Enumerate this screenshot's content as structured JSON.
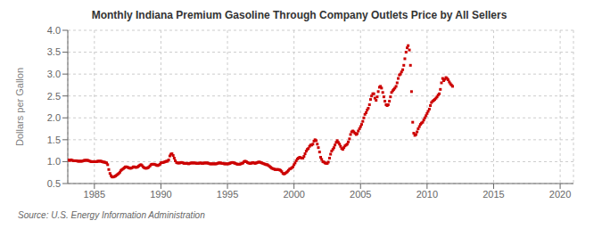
{
  "chart_data": {
    "type": "scatter",
    "title": "Monthly Indiana Premium Gasoline Through Company Outlets Price by All Sellers",
    "ylabel": "Dollars per Gallon",
    "annotations": [
      "Source: U.S. Energy Information Administration"
    ],
    "color": "#cc0000",
    "marker": "square",
    "grid": true,
    "xlim": [
      1983,
      2021
    ],
    "ylim": [
      0.5,
      4.0
    ],
    "xticks": [
      1985,
      1990,
      1995,
      2000,
      2005,
      2010,
      2015,
      2020
    ],
    "yticks": [
      0.5,
      {
        "value": 1.0,
        "label": "1.0"
      },
      1.5,
      {
        "value": 2.0,
        "label": "2.0"
      },
      2.5,
      {
        "value": 3.0,
        "label": "3.0"
      },
      3.5,
      {
        "value": 4.0,
        "label": "4.0"
      }
    ],
    "x": [
      1983.0,
      1983.08,
      1983.17,
      1983.25,
      1983.33,
      1983.42,
      1983.5,
      1983.58,
      1983.67,
      1983.75,
      1983.83,
      1983.92,
      1984.0,
      1984.08,
      1984.17,
      1984.25,
      1984.33,
      1984.42,
      1984.5,
      1984.58,
      1984.67,
      1984.75,
      1984.83,
      1984.92,
      1985.0,
      1985.08,
      1985.17,
      1985.25,
      1985.33,
      1985.42,
      1985.5,
      1985.58,
      1985.67,
      1985.75,
      1985.83,
      1985.92,
      1986.0,
      1986.08,
      1986.17,
      1986.25,
      1986.33,
      1986.42,
      1986.5,
      1986.58,
      1986.67,
      1986.75,
      1986.83,
      1986.92,
      1987.0,
      1987.08,
      1987.17,
      1987.25,
      1987.33,
      1987.42,
      1987.5,
      1987.58,
      1987.67,
      1987.75,
      1987.83,
      1987.92,
      1988.0,
      1988.08,
      1988.17,
      1988.25,
      1988.33,
      1988.42,
      1988.5,
      1988.58,
      1988.67,
      1988.75,
      1988.83,
      1988.92,
      1989.0,
      1989.08,
      1989.17,
      1989.25,
      1989.33,
      1989.42,
      1989.5,
      1989.58,
      1989.67,
      1989.75,
      1989.83,
      1989.92,
      1990.0,
      1990.08,
      1990.17,
      1990.25,
      1990.33,
      1990.42,
      1990.5,
      1990.58,
      1990.67,
      1990.75,
      1990.83,
      1990.92,
      1991.0,
      1991.08,
      1991.17,
      1991.25,
      1991.33,
      1991.42,
      1991.5,
      1991.58,
      1991.67,
      1991.75,
      1991.83,
      1991.92,
      1992.0,
      1992.08,
      1992.17,
      1992.25,
      1992.33,
      1992.42,
      1992.5,
      1992.58,
      1992.67,
      1992.75,
      1992.83,
      1992.92,
      1993.0,
      1993.08,
      1993.17,
      1993.25,
      1993.33,
      1993.42,
      1993.5,
      1993.58,
      1993.67,
      1993.75,
      1993.83,
      1993.92,
      1994.0,
      1994.08,
      1994.17,
      1994.25,
      1994.33,
      1994.42,
      1994.5,
      1994.58,
      1994.67,
      1994.75,
      1994.83,
      1994.92,
      1995.0,
      1995.08,
      1995.17,
      1995.25,
      1995.33,
      1995.42,
      1995.5,
      1995.58,
      1995.67,
      1995.75,
      1995.83,
      1995.92,
      1996.0,
      1996.08,
      1996.17,
      1996.25,
      1996.33,
      1996.42,
      1996.5,
      1996.58,
      1996.67,
      1996.75,
      1996.83,
      1996.92,
      1997.0,
      1997.08,
      1997.17,
      1997.25,
      1997.33,
      1997.42,
      1997.5,
      1997.58,
      1997.67,
      1997.75,
      1997.83,
      1997.92,
      1998.0,
      1998.08,
      1998.17,
      1998.25,
      1998.33,
      1998.42,
      1998.5,
      1998.58,
      1998.67,
      1998.75,
      1998.83,
      1998.92,
      1999.0,
      1999.08,
      1999.17,
      1999.25,
      1999.33,
      1999.42,
      1999.5,
      1999.58,
      1999.67,
      1999.75,
      1999.83,
      1999.92,
      2000.0,
      2000.08,
      2000.17,
      2000.25,
      2000.33,
      2000.42,
      2000.5,
      2000.58,
      2000.67,
      2000.75,
      2000.83,
      2000.92,
      2001.0,
      2001.08,
      2001.17,
      2001.25,
      2001.33,
      2001.42,
      2001.5,
      2001.58,
      2001.67,
      2001.75,
      2001.83,
      2001.92,
      2002.0,
      2002.08,
      2002.17,
      2002.25,
      2002.33,
      2002.42,
      2002.5,
      2002.58,
      2002.67,
      2002.75,
      2002.83,
      2002.92,
      2003.0,
      2003.08,
      2003.17,
      2003.25,
      2003.33,
      2003.42,
      2003.5,
      2003.58,
      2003.67,
      2003.75,
      2003.83,
      2003.92,
      2004.0,
      2004.08,
      2004.17,
      2004.25,
      2004.33,
      2004.42,
      2004.5,
      2004.58,
      2004.67,
      2004.75,
      2004.83,
      2004.92,
      2005.0,
      2005.08,
      2005.17,
      2005.25,
      2005.33,
      2005.42,
      2005.5,
      2005.58,
      2005.67,
      2005.75,
      2005.83,
      2005.92,
      2006.0,
      2006.08,
      2006.17,
      2006.25,
      2006.33,
      2006.42,
      2006.5,
      2006.58,
      2006.67,
      2006.75,
      2006.83,
      2006.92,
      2007.0,
      2007.08,
      2007.17,
      2007.25,
      2007.33,
      2007.42,
      2007.5,
      2007.58,
      2007.67,
      2007.75,
      2007.83,
      2007.92,
      2008.0,
      2008.08,
      2008.17,
      2008.25,
      2008.33,
      2008.42,
      2008.5,
      2008.58,
      2008.67,
      2008.75,
      2008.83,
      2008.92,
      2009.0,
      2009.08,
      2009.17,
      2009.25,
      2009.33,
      2009.42,
      2009.5,
      2009.58,
      2009.67,
      2009.75,
      2009.83,
      2009.92,
      2010.0,
      2010.08,
      2010.17,
      2010.25,
      2010.33,
      2010.42,
      2010.5,
      2010.58,
      2010.67,
      2010.75,
      2010.83,
      2010.92,
      2011.0,
      2011.08,
      2011.17,
      2011.25,
      2011.33,
      2011.42,
      2011.5,
      2011.58,
      2011.67,
      2011.75,
      2011.83,
      2011.92
    ],
    "values": [
      1.04,
      1.03,
      1.03,
      1.04,
      1.03,
      1.02,
      1.02,
      1.02,
      1.02,
      1.01,
      1.01,
      1.01,
      1.01,
      1.01,
      1.02,
      1.03,
      1.03,
      1.03,
      1.03,
      1.02,
      1.01,
      1.0,
      1.0,
      1.0,
      1.0,
      1.0,
      1.0,
      1.01,
      1.01,
      1.01,
      1.01,
      1.0,
      0.99,
      0.99,
      0.98,
      0.97,
      0.93,
      0.82,
      0.73,
      0.68,
      0.65,
      0.65,
      0.66,
      0.67,
      0.69,
      0.71,
      0.73,
      0.76,
      0.8,
      0.82,
      0.84,
      0.86,
      0.88,
      0.88,
      0.87,
      0.86,
      0.85,
      0.85,
      0.86,
      0.88,
      0.88,
      0.87,
      0.87,
      0.88,
      0.9,
      0.92,
      0.93,
      0.91,
      0.88,
      0.86,
      0.85,
      0.85,
      0.86,
      0.87,
      0.9,
      0.93,
      0.94,
      0.94,
      0.94,
      0.93,
      0.92,
      0.91,
      0.92,
      0.94,
      0.97,
      0.98,
      0.98,
      0.99,
      1.0,
      1.01,
      1.01,
      1.04,
      1.13,
      1.17,
      1.18,
      1.14,
      1.08,
      1.02,
      0.98,
      0.97,
      0.97,
      0.97,
      0.98,
      0.98,
      0.97,
      0.96,
      0.96,
      0.96,
      0.96,
      0.95,
      0.96,
      0.97,
      0.97,
      0.97,
      0.97,
      0.97,
      0.96,
      0.96,
      0.96,
      0.97,
      0.97,
      0.96,
      0.96,
      0.97,
      0.97,
      0.97,
      0.97,
      0.96,
      0.95,
      0.95,
      0.95,
      0.95,
      0.95,
      0.95,
      0.95,
      0.96,
      0.97,
      0.97,
      0.97,
      0.96,
      0.96,
      0.95,
      0.95,
      0.95,
      0.95,
      0.95,
      0.96,
      0.97,
      0.98,
      0.98,
      0.97,
      0.96,
      0.95,
      0.94,
      0.94,
      0.94,
      0.95,
      0.96,
      0.97,
      1.0,
      1.01,
      1.0,
      0.98,
      0.97,
      0.96,
      0.96,
      0.97,
      0.98,
      0.97,
      0.96,
      0.97,
      0.98,
      0.99,
      0.99,
      0.98,
      0.97,
      0.96,
      0.95,
      0.94,
      0.93,
      0.93,
      0.91,
      0.89,
      0.87,
      0.85,
      0.84,
      0.83,
      0.82,
      0.82,
      0.82,
      0.82,
      0.81,
      0.8,
      0.77,
      0.73,
      0.72,
      0.73,
      0.75,
      0.77,
      0.8,
      0.83,
      0.84,
      0.86,
      0.88,
      0.93,
      0.97,
      1.02,
      1.06,
      1.08,
      1.1,
      1.09,
      1.08,
      1.08,
      1.12,
      1.18,
      1.24,
      1.28,
      1.3,
      1.35,
      1.38,
      1.38,
      1.4,
      1.47,
      1.5,
      1.48,
      1.4,
      1.32,
      1.22,
      1.1,
      1.05,
      1.0,
      0.99,
      0.97,
      0.96,
      0.96,
      0.99,
      1.08,
      1.17,
      1.24,
      1.28,
      1.32,
      1.38,
      1.44,
      1.48,
      1.44,
      1.4,
      1.35,
      1.3,
      1.28,
      1.32,
      1.36,
      1.38,
      1.4,
      1.45,
      1.52,
      1.62,
      1.68,
      1.7,
      1.68,
      1.65,
      1.62,
      1.64,
      1.7,
      1.75,
      1.8,
      1.85,
      1.92,
      2.0,
      2.08,
      2.12,
      2.18,
      2.22,
      2.3,
      2.42,
      2.5,
      2.55,
      2.55,
      2.45,
      2.4,
      2.48,
      2.6,
      2.7,
      2.72,
      2.68,
      2.58,
      2.48,
      2.38,
      2.3,
      2.28,
      2.3,
      2.38,
      2.48,
      2.58,
      2.62,
      2.65,
      2.68,
      2.72,
      2.8,
      2.9,
      2.98,
      3.0,
      3.05,
      3.1,
      3.2,
      3.35,
      3.5,
      3.6,
      3.65,
      3.55,
      3.2,
      2.6,
      1.9,
      1.65,
      1.6,
      1.62,
      1.68,
      1.75,
      1.8,
      1.85,
      1.88,
      1.9,
      1.95,
      2.0,
      2.05,
      2.1,
      2.15,
      2.2,
      2.28,
      2.35,
      2.38,
      2.4,
      2.42,
      2.45,
      2.48,
      2.52,
      2.55,
      2.65,
      2.8,
      2.9,
      2.85,
      2.88,
      2.92,
      2.9,
      2.87,
      2.82,
      2.78,
      2.75,
      2.72
    ]
  }
}
